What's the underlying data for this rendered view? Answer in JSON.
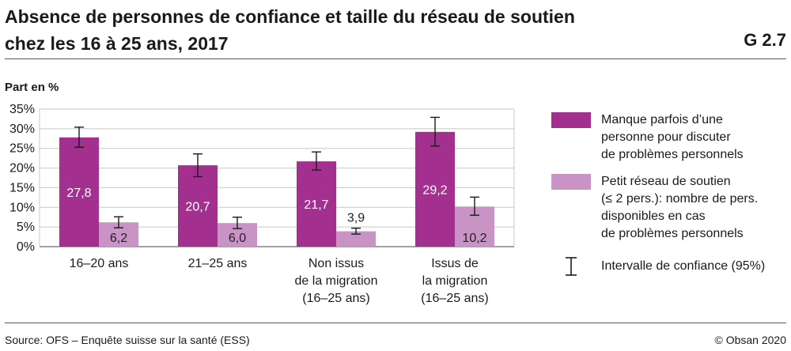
{
  "header": {
    "title_line1": "Absence de personnes de confiance et taille du réseau de soutien",
    "title_line2": "chez les 16 à 25 ans, 2017",
    "code": "G 2.7"
  },
  "footer": {
    "source": "Source: OFS – Enquête suisse sur la santé (ESS)",
    "credit": "© Obsan 2020"
  },
  "chart_data": {
    "type": "bar",
    "ylabel": "Part en %",
    "ylim": [
      0,
      35
    ],
    "yticks": [
      0,
      5,
      10,
      15,
      20,
      25,
      30,
      35
    ],
    "ytick_labels": [
      "0%",
      "5%",
      "10%",
      "15%",
      "20%",
      "25%",
      "30%",
      "35%"
    ],
    "grid": true,
    "legend_position": "right",
    "categories": [
      [
        "16–20 ans"
      ],
      [
        "21–25 ans"
      ],
      [
        "Non issus",
        "de la migration",
        "(16–25 ans)"
      ],
      [
        "Issus de",
        "la migration",
        "(16–25 ans)"
      ]
    ],
    "series": [
      {
        "name": "Manque parfois d’une personne pour discuter de problèmes personnels",
        "legend_lines": [
          "Manque parfois d’une",
          "personne pour discuter",
          "de problèmes personnels"
        ],
        "color": "#a3308f",
        "label_color": "#ffffff",
        "values": [
          27.8,
          20.7,
          21.7,
          29.2
        ],
        "value_labels": [
          "27,8",
          "20,7",
          "21,7",
          "29,2"
        ],
        "ci_low": [
          25.3,
          17.8,
          19.5,
          25.6
        ],
        "ci_high": [
          30.4,
          23.6,
          24.1,
          32.9
        ]
      },
      {
        "name": "Petit réseau de soutien (≤ 2 pers.): nombre de pers. disponibles en cas de problèmes personnels",
        "legend_lines": [
          "Petit réseau de soutien",
          "(≤ 2 pers.): nombre de pers.",
          "disponibles en cas",
          "de problèmes personnels"
        ],
        "color": "#c994c5",
        "label_color": "#222222",
        "values": [
          6.2,
          6.0,
          3.9,
          10.2
        ],
        "value_labels": [
          "6,2",
          "6,0",
          "3,9",
          "10,2"
        ],
        "ci_low": [
          4.8,
          4.6,
          3.2,
          8.0
        ],
        "ci_high": [
          7.6,
          7.5,
          4.7,
          12.6
        ]
      }
    ],
    "ci_legend": "Intervalle de confiance (95%)"
  }
}
